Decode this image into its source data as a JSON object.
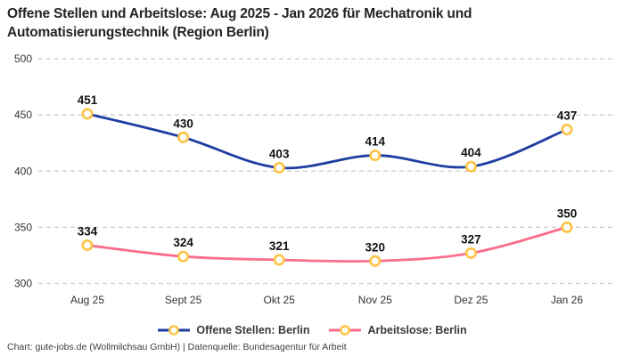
{
  "title": "Offene Stellen und Arbeitslose: Aug 2025 - Jan 2026 für Mechatronik und Automatisierungstechnik (Region Berlin)",
  "footer": "Chart: gute-jobs.de (Wollmilchsau GmbH) | Datenquelle: Bundesagentur für Arbeit",
  "colors": {
    "background": "#ffffff",
    "title_text": "#242424",
    "grid_line": "#cccccc",
    "tick_text": "#333333",
    "data_label_text": "#111111",
    "legend_text": "#3a3a3a",
    "footer_text": "#3d3d3d"
  },
  "chart_data": {
    "type": "line",
    "title": "Offene Stellen und Arbeitslose: Aug 2025 - Jan 2026 für Mechatronik und Automatisierungstechnik (Region Berlin)",
    "categories": [
      "Aug 25",
      "Sept 25",
      "Okt 25",
      "Nov 25",
      "Dez 25",
      "Jan 26"
    ],
    "series": [
      {
        "name": "Offene Stellen: Berlin",
        "color": "#1e3da0",
        "values": [
          451,
          430,
          403,
          414,
          404,
          437
        ]
      },
      {
        "name": "Arbeitslose: Berlin",
        "color": "#fa6e8c",
        "values": [
          334,
          324,
          321,
          320,
          327,
          350
        ]
      }
    ],
    "marker": {
      "fill": "#ffffff",
      "stroke": "#fdc243"
    },
    "yticks": [
      300,
      350,
      400,
      450,
      500
    ],
    "ylim": [
      300,
      500
    ],
    "grid": "horizontal-dashed",
    "legend_position": "bottom",
    "data_labels": "above-points"
  }
}
